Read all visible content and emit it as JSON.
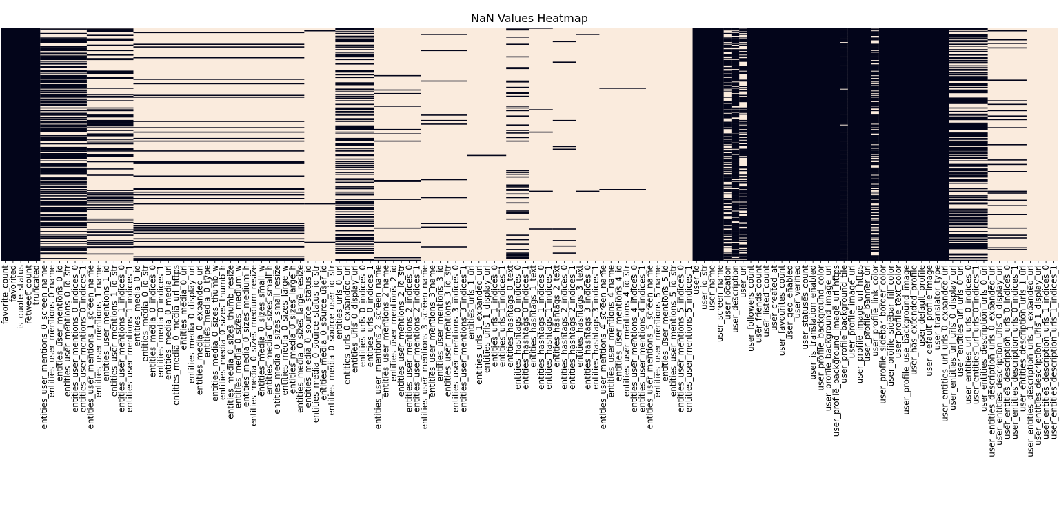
{
  "chart_data": {
    "type": "heatmap",
    "title": "NaN Values Heatmap",
    "xlabel": "",
    "ylabel": "",
    "legend": "none",
    "grid": false,
    "colors": {
      "present": "#03051a",
      "missing": "#faebdd"
    },
    "columns": [
      "favorite_count",
      "favorited",
      "is_quote_status",
      "retweet_count",
      "truncated",
      "entities_user_mentions_0_screen_name",
      "entities_user_mentions_0_name",
      "entities_user_mentions_0_id",
      "entities_user_mentions_0_id_str",
      "entities_user_mentions_0_indices_0",
      "entities_user_mentions_0_indices_1",
      "entities_user_mentions_1_screen_name",
      "entities_user_mentions_1_name",
      "entities_user_mentions_1_id",
      "entities_user_mentions_1_id_str",
      "entities_user_mentions_1_indices_0",
      "entities_user_mentions_1_indices_1",
      "entities_media_0_id",
      "entities_media_0_id_str",
      "entities_media_0_indices_0",
      "entities_media_0_indices_1",
      "entities_media_0_media_url",
      "entities_media_0_media_url_https",
      "entities_media_0_url",
      "entities_media_0_display_url",
      "entities_media_0_expanded_url",
      "entities_media_0_type",
      "entities_media_0_sizes_thumb_w",
      "entities_media_0_sizes_thumb_h",
      "entities_media_0_sizes_thumb_resize",
      "entities_media_0_sizes_medium_w",
      "entities_media_0_sizes_medium_h",
      "entities_media_0_sizes_medium_resize",
      "entities_media_0_sizes_small_w",
      "entities_media_0_sizes_small_h",
      "entities_media_0_sizes_small_resize",
      "entities_media_0_sizes_large_w",
      "entities_media_0_sizes_large_h",
      "entities_media_0_sizes_large_resize",
      "entities_media_0_source_status_id",
      "entities_media_0_source_status_id_str",
      "entities_media_0_source_user_id",
      "entities_media_0_source_user_id_str",
      "entities_urls_0_url",
      "entities_urls_0_expanded_url",
      "entities_urls_0_display_url",
      "entities_urls_0_indices_0",
      "entities_urls_0_indices_1",
      "entities_user_mentions_2_screen_name",
      "entities_user_mentions_2_name",
      "entities_user_mentions_2_id",
      "entities_user_mentions_2_id_str",
      "entities_user_mentions_2_indices_0",
      "entities_user_mentions_2_indices_1",
      "entities_user_mentions_3_screen_name",
      "entities_user_mentions_3_name",
      "entities_user_mentions_3_id",
      "entities_user_mentions_3_id_str",
      "entities_user_mentions_3_indices_0",
      "entities_user_mentions_3_indices_1",
      "entities_urls_1_url",
      "entities_urls_1_expanded_url",
      "entities_urls_1_display_url",
      "entities_urls_1_indices_0",
      "entities_urls_1_indices_1",
      "entities_hashtags_0_text",
      "entities_hashtags_0_indices_0",
      "entities_hashtags_0_indices_1",
      "entities_hashtags_1_text",
      "entities_hashtags_1_indices_0",
      "entities_hashtags_1_indices_1",
      "entities_hashtags_2_text",
      "entities_hashtags_2_indices_0",
      "entities_hashtags_2_indices_1",
      "entities_hashtags_3_text",
      "entities_hashtags_3_indices_0",
      "entities_hashtags_3_indices_1",
      "entities_user_mentions_4_screen_name",
      "entities_user_mentions_4_name",
      "entities_user_mentions_4_id",
      "entities_user_mentions_4_id_str",
      "entities_user_mentions_4_indices_0",
      "entities_user_mentions_4_indices_1",
      "entities_user_mentions_5_screen_name",
      "entities_user_mentions_5_name",
      "entities_user_mentions_5_id",
      "entities_user_mentions_5_id_str",
      "entities_user_mentions_5_indices_0",
      "entities_user_mentions_5_indices_1",
      "user_id",
      "user_id_str",
      "user_name",
      "user_screen_name",
      "user_location",
      "user_description",
      "user_url",
      "user_followers_count",
      "user_friends_count",
      "user_listed_count",
      "user_created_at",
      "user_favourites_count",
      "user_geo_enabled",
      "user_verified",
      "user_statuses_count",
      "user_is_translation_enabled",
      "user_profile_background_color",
      "user_profile_background_image_url",
      "user_profile_background_image_url_https",
      "user_profile_background_tile",
      "user_profile_image_url",
      "user_profile_image_url_https",
      "user_profile_banner_url",
      "user_profile_link_color",
      "user_profile_sidebar_border_color",
      "user_profile_sidebar_fill_color",
      "user_profile_text_color",
      "user_profile_use_background_image",
      "user_has_extended_profile",
      "user_default_profile",
      "user_default_profile_image",
      "user_translator_type",
      "user_entities_url_urls_0_expanded_url",
      "user_entities_url_urls_0_display_url",
      "user_entities_url_urls_0_url",
      "user_entities_url_urls_0_indices_0",
      "user_entities_url_urls_0_indices_1",
      "user_entities_description_urls_0_url",
      "user_entities_description_urls_0_expanded_url",
      "user_entities_description_urls_0_display_url",
      "user_entities_description_urls_0_indices_0",
      "user_entities_description_urls_0_indices_1",
      "user_entities_description_urls_1_url",
      "user_entities_description_urls_1_expanded_url",
      "user_entities_description_urls_1_display_url",
      "user_entities_description_urls_1_indices_0",
      "user_entities_description_urls_1_indices_1"
    ],
    "column_groups": [
      {
        "start": 0,
        "end": 4,
        "present_fraction": 1.0
      },
      {
        "start": 5,
        "end": 10,
        "present_fraction": 0.62
      },
      {
        "start": 11,
        "end": 16,
        "present_fraction": 0.3
      },
      {
        "start": 17,
        "end": 38,
        "present_fraction": 0.14
      },
      {
        "start": 39,
        "end": 42,
        "present_fraction": 0.01
      },
      {
        "start": 43,
        "end": 47,
        "present_fraction": 0.42
      },
      {
        "start": 48,
        "end": 53,
        "present_fraction": 0.07
      },
      {
        "start": 54,
        "end": 59,
        "present_fraction": 0.03
      },
      {
        "start": 60,
        "end": 64,
        "present_fraction": 0.01
      },
      {
        "start": 65,
        "end": 67,
        "present_fraction": 0.14
      },
      {
        "start": 68,
        "end": 70,
        "present_fraction": 0.05
      },
      {
        "start": 71,
        "end": 73,
        "present_fraction": 0.02
      },
      {
        "start": 74,
        "end": 76,
        "present_fraction": 0.01
      },
      {
        "start": 77,
        "end": 82,
        "present_fraction": 0.02
      },
      {
        "start": 83,
        "end": 88,
        "present_fraction": 0.0
      },
      {
        "start": 89,
        "end": 92,
        "present_fraction": 1.0
      },
      {
        "start": 93,
        "end": 93,
        "present_fraction": 0.6
      },
      {
        "start": 94,
        "end": 94,
        "present_fraction": 0.85
      },
      {
        "start": 95,
        "end": 95,
        "present_fraction": 0.55
      },
      {
        "start": 96,
        "end": 107,
        "present_fraction": 1.0
      },
      {
        "start": 108,
        "end": 108,
        "present_fraction": 0.97
      },
      {
        "start": 109,
        "end": 111,
        "present_fraction": 1.0
      },
      {
        "start": 112,
        "end": 112,
        "present_fraction": 0.7
      },
      {
        "start": 113,
        "end": 121,
        "present_fraction": 1.0
      },
      {
        "start": 122,
        "end": 126,
        "present_fraction": 0.55
      },
      {
        "start": 127,
        "end": 131,
        "present_fraction": 0.06
      },
      {
        "start": 132,
        "end": 136,
        "present_fraction": 0.0
      }
    ]
  }
}
